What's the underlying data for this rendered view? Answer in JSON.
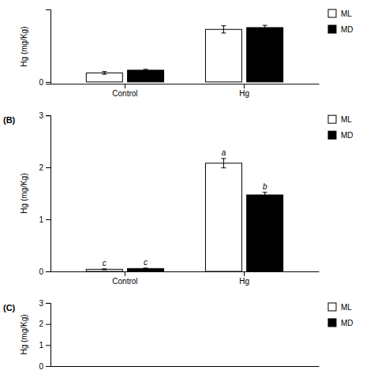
{
  "chart_data": [
    {
      "type": "bar",
      "categories": [
        "Control",
        "Hg"
      ],
      "series": [
        {
          "name": "ML",
          "color": "#ffffff",
          "values": [
            0.1,
            0.58
          ],
          "errors": [
            0.015,
            0.04
          ]
        },
        {
          "name": "MD",
          "color": "#000000",
          "values": [
            0.13,
            0.6
          ],
          "errors": [
            0.01,
            0.025
          ]
        }
      ],
      "ylim": [
        -0.02,
        0.8
      ],
      "yticks": [
        0
      ],
      "ylabel": "Hg (mg/Kg)",
      "legend": "right",
      "grid": false
    },
    {
      "type": "bar",
      "title": "(B)",
      "categories": [
        "Control",
        "Hg"
      ],
      "series": [
        {
          "name": "ML",
          "color": "#ffffff",
          "values": [
            0.04,
            2.08
          ],
          "errors": [
            0.008,
            0.09
          ]
        },
        {
          "name": "MD",
          "color": "#000000",
          "values": [
            0.055,
            1.47
          ],
          "errors": [
            0.008,
            0.05
          ]
        }
      ],
      "ylim": [
        0,
        3
      ],
      "yticks": [
        0,
        1,
        2,
        3
      ],
      "ylabel": "Hg (mg/Kg)",
      "annotations": [
        {
          "text": "a",
          "category": "Hg",
          "series": "ML"
        },
        {
          "text": "b",
          "category": "Hg",
          "series": "MD"
        },
        {
          "text": "c",
          "category": "Control",
          "series": "ML"
        },
        {
          "text": "c",
          "category": "Control",
          "series": "MD"
        }
      ],
      "legend": "right",
      "grid": false
    },
    {
      "type": "bar",
      "title": "(C)",
      "categories": [
        null,
        null
      ],
      "series": [
        {
          "name": "ML",
          "color": "#ffffff"
        },
        {
          "name": "MD",
          "color": "#000000"
        }
      ],
      "ylim": [
        0,
        3
      ],
      "yticks": [
        0,
        1,
        2,
        3
      ],
      "ylabel": "Hg (mg/Kg)",
      "legend": "right",
      "grid": false
    }
  ]
}
